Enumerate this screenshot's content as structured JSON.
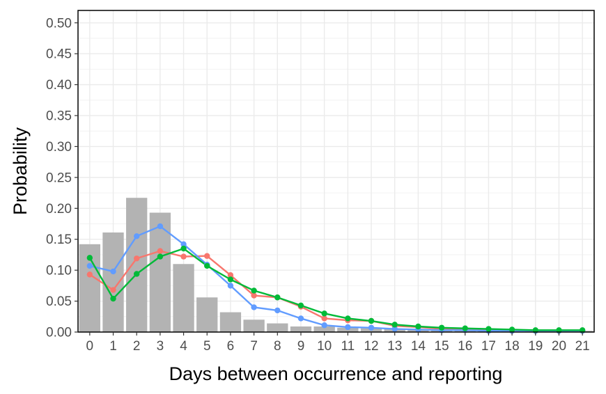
{
  "chart_data": {
    "type": "bar",
    "title": "",
    "xlabel": "Days between occurrence and reporting",
    "ylabel": "Probability",
    "ylim": [
      0,
      0.52
    ],
    "xlim": [
      -0.5,
      21.5
    ],
    "yticks": [
      "0.00",
      "0.05",
      "0.10",
      "0.15",
      "0.20",
      "0.25",
      "0.30",
      "0.35",
      "0.40",
      "0.45",
      "0.50"
    ],
    "grid": true,
    "legend": "none",
    "categories": [
      "0",
      "1",
      "2",
      "3",
      "4",
      "5",
      "6",
      "7",
      "8",
      "9",
      "10",
      "11",
      "12",
      "13",
      "14",
      "15",
      "16",
      "17",
      "18",
      "19",
      "20",
      "21"
    ],
    "bars": {
      "color": "#b3b3b3",
      "values": [
        0.142,
        0.161,
        0.217,
        0.193,
        0.11,
        0.056,
        0.032,
        0.02,
        0.014,
        0.009,
        0.009,
        0.007,
        0.006,
        0.005,
        0.004,
        0.003,
        0.003,
        0.003,
        0.002,
        0.002,
        0.002,
        0.002
      ]
    },
    "series": [
      {
        "color": "#f8766d",
        "values": [
          0.093,
          0.068,
          0.119,
          0.131,
          0.122,
          0.123,
          0.092,
          0.059,
          0.056,
          0.041,
          0.022,
          0.019,
          0.018,
          0.01,
          0.008,
          0.005,
          0.004,
          0.003,
          0.002,
          0.002,
          0.002,
          0.002
        ]
      },
      {
        "color": "#619cff",
        "values": [
          0.107,
          0.098,
          0.155,
          0.171,
          0.142,
          0.109,
          0.075,
          0.04,
          0.035,
          0.022,
          0.011,
          0.008,
          0.007,
          0.005,
          0.004,
          0.003,
          0.003,
          0.002,
          0.002,
          0.002,
          0.002,
          0.002
        ]
      },
      {
        "color": "#00ba38",
        "values": [
          0.12,
          0.054,
          0.094,
          0.122,
          0.135,
          0.107,
          0.085,
          0.067,
          0.056,
          0.043,
          0.03,
          0.022,
          0.018,
          0.012,
          0.009,
          0.007,
          0.006,
          0.005,
          0.004,
          0.003,
          0.003,
          0.003
        ]
      }
    ]
  }
}
